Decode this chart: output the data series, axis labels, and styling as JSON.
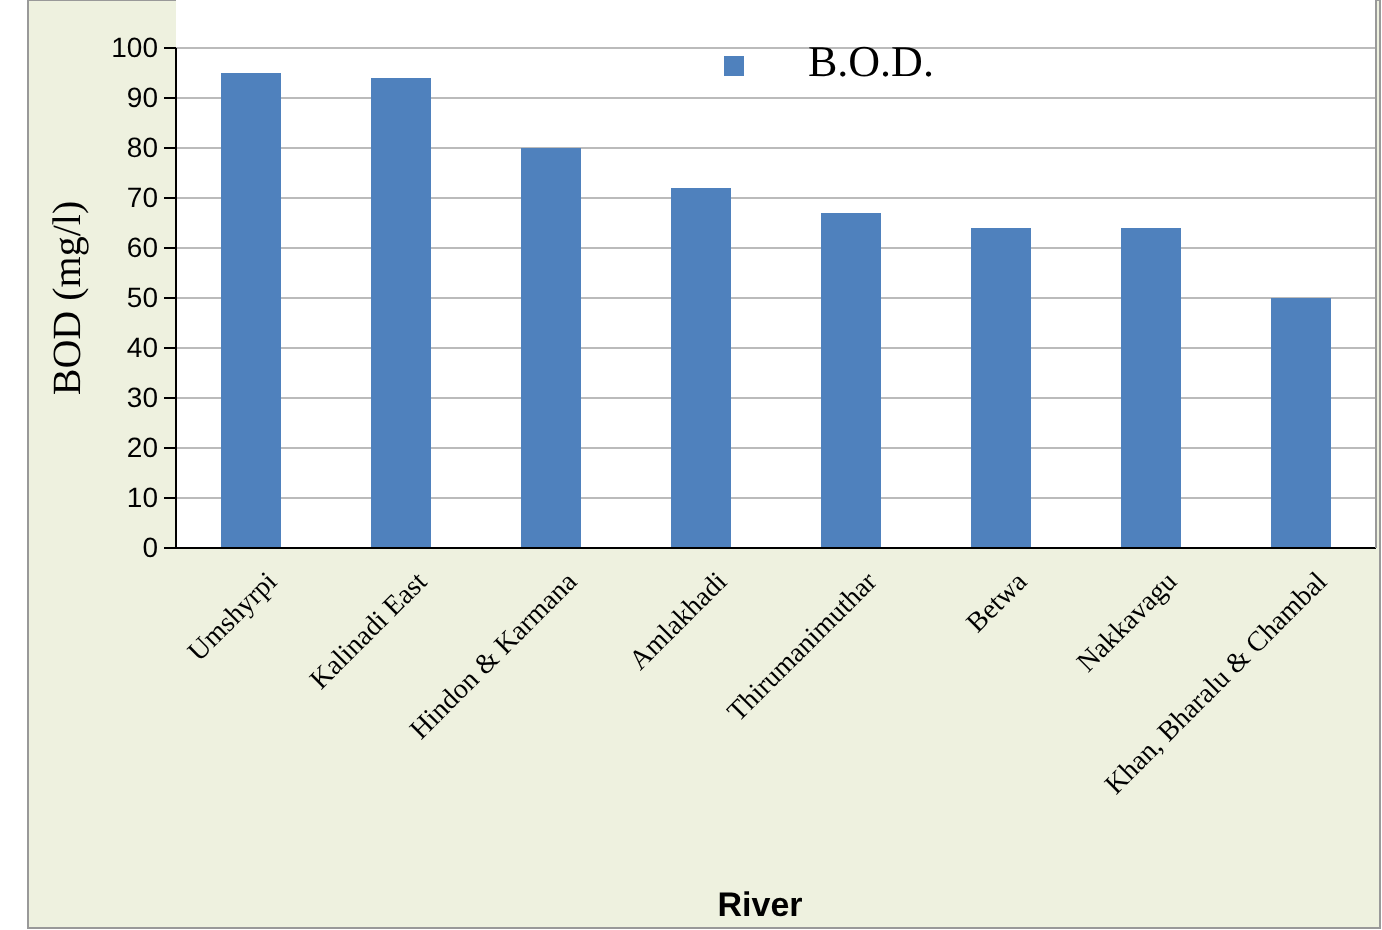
{
  "chart_data": {
    "type": "bar",
    "xlabel": "River",
    "ylabel": "BOD (mg/l)",
    "categories": [
      "Umshyrpi",
      "Kalinadi East",
      "Hindon & Karmana",
      "Amlakhadi",
      "Thirumanimuthar",
      "Betwa",
      "Nakkavagu",
      "Khan, Bharalu & Chambal"
    ],
    "series": [
      {
        "name": "B.O.D.",
        "color": "#4f81bd",
        "values": [
          95,
          94,
          80,
          72,
          67,
          64,
          64,
          50
        ]
      }
    ],
    "ylim": [
      0,
      100
    ],
    "yticks": [
      0,
      10,
      20,
      30,
      40,
      50,
      60,
      70,
      80,
      90,
      100
    ],
    "grid": "y",
    "legend": "top"
  }
}
